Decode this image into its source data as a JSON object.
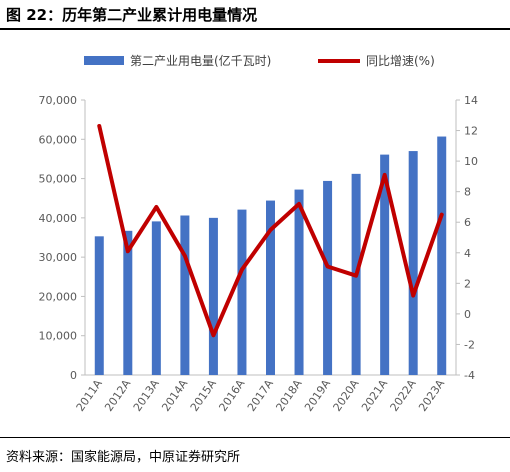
{
  "figure": {
    "title": "图 22：历年第二产业累计用电量情况",
    "source": "资料来源：国家能源局，中原证券研究所"
  },
  "chart_data": {
    "type": "bar",
    "categories": [
      "2011A",
      "2012A",
      "2013A",
      "2014A",
      "2015A",
      "2016A",
      "2017A",
      "2018A",
      "2019A",
      "2020A",
      "2021A",
      "2022A",
      "2023A"
    ],
    "series": [
      {
        "name": "第二产业用电量(亿千瓦时)",
        "type": "bar",
        "axis": "left",
        "color": "#4472c4",
        "values": [
          35300,
          36700,
          39100,
          40600,
          40000,
          42100,
          44400,
          47200,
          49400,
          51200,
          56100,
          57000,
          60700
        ]
      },
      {
        "name": "同比增速(%)",
        "type": "line",
        "axis": "right",
        "color": "#c00000",
        "values": [
          12.3,
          4.1,
          7.0,
          3.8,
          -1.4,
          2.9,
          5.5,
          7.2,
          3.1,
          2.5,
          9.1,
          1.2,
          6.5
        ]
      }
    ],
    "y_left": {
      "min": 0,
      "max": 70000,
      "ticks": [
        "0",
        "10,000",
        "20,000",
        "30,000",
        "40,000",
        "50,000",
        "60,000",
        "70,000"
      ]
    },
    "y_right": {
      "min": -4,
      "max": 14,
      "ticks": [
        "-4",
        "-2",
        "0",
        "2",
        "4",
        "6",
        "8",
        "10",
        "12",
        "14"
      ]
    },
    "legend": "top",
    "grid": false
  }
}
